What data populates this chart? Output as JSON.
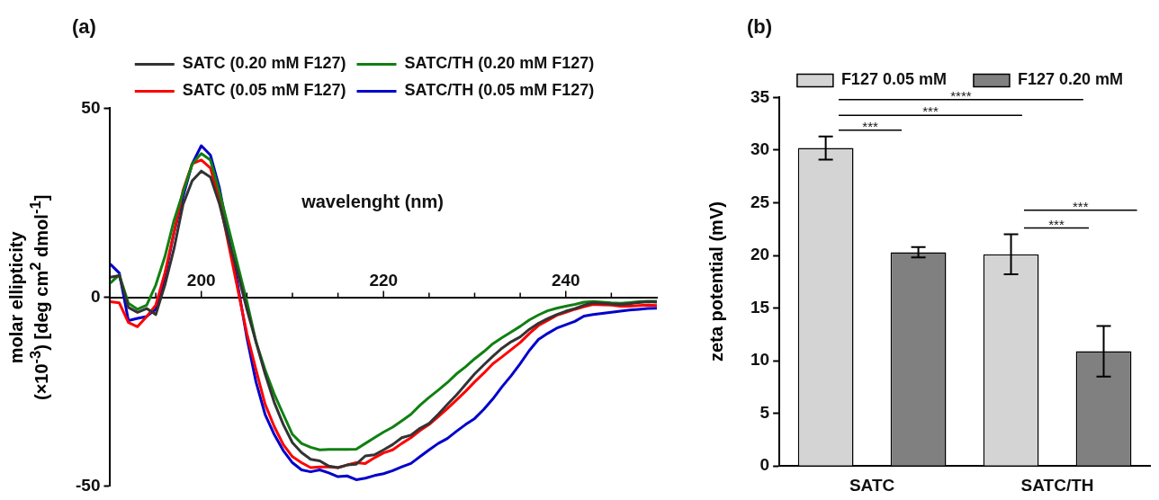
{
  "chart_data": [
    {
      "type": "line",
      "title": "(a)",
      "xlabel": "wavelenght (nm)",
      "ylabel": "molar ellipticity\n(×10$^{-3}$) [deg cm$^{2}$ dmol$^{-1}$]",
      "x": [
        190,
        191,
        192,
        193,
        194,
        195,
        196,
        197,
        198,
        199,
        200,
        201,
        202,
        203,
        204,
        205,
        206,
        207,
        208,
        209,
        210,
        211,
        212,
        213,
        214,
        215,
        216,
        217,
        218,
        219,
        220,
        221,
        222,
        223,
        224,
        225,
        226,
        227,
        228,
        229,
        230,
        231,
        232,
        233,
        234,
        235,
        236,
        237,
        238,
        239,
        240,
        241,
        242,
        243,
        244,
        245,
        246,
        247,
        248,
        249,
        250
      ],
      "series": [
        {
          "name": "SATC (0.20 mM F127)",
          "color": "#333333",
          "values": [
            5.3,
            5.7,
            -2.7,
            -4,
            -3,
            -4.6,
            3.2,
            12.8,
            24.6,
            30.8,
            33.4,
            31.8,
            24.6,
            15,
            6.4,
            -3.2,
            -11.8,
            -20.3,
            -27.8,
            -33.7,
            -38.5,
            -41.1,
            -42.9,
            -43.3,
            -44.7,
            -45.1,
            -44.4,
            -44.2,
            -42,
            -41.7,
            -40.4,
            -39,
            -37.2,
            -36.5,
            -34.7,
            -33.4,
            -31,
            -28.4,
            -25.9,
            -23.1,
            -20.3,
            -17.9,
            -15.6,
            -13.5,
            -11.8,
            -10.5,
            -8.5,
            -6.9,
            -5.7,
            -4.6,
            -3.7,
            -3,
            -2.1,
            -1.5,
            -1.6,
            -1.8,
            -1.9,
            -1.7,
            -1.4,
            -1.2,
            -1.3
          ]
        },
        {
          "name": "SATC/TH (0.20 mM F127)",
          "color": "#108010",
          "values": [
            3.7,
            5.9,
            -1.6,
            -3.2,
            -2.1,
            3.2,
            10.7,
            20.3,
            27.8,
            35.3,
            38,
            36.3,
            27.8,
            18.2,
            8.5,
            -1.1,
            -11.8,
            -19.2,
            -25.6,
            -31,
            -36.3,
            -38.7,
            -39.7,
            -40.4,
            -40.3,
            -40.3,
            -40.3,
            -40.2,
            -38.7,
            -37.2,
            -35.7,
            -34.4,
            -32.7,
            -31,
            -28.6,
            -26.5,
            -24.6,
            -22.6,
            -20.3,
            -18.4,
            -16.3,
            -14.4,
            -12.3,
            -10.7,
            -9.2,
            -7.7,
            -6,
            -4.7,
            -3.6,
            -2.9,
            -2.4,
            -1.9,
            -1.3,
            -1.1,
            -1.3,
            -1.5,
            -1.6,
            -1.4,
            -1.2,
            -1.1,
            -1.1
          ]
        },
        {
          "name": "SATC (0.05 mM F127)",
          "color": "#ff0000",
          "values": [
            -1.2,
            -1.5,
            -6.7,
            -7.8,
            -5.1,
            -2.1,
            6.4,
            17.1,
            28.3,
            35.3,
            36.3,
            34.2,
            25.6,
            13.9,
            2.1,
            -9.6,
            -19.2,
            -28.3,
            -34.2,
            -39,
            -42.2,
            -43.8,
            -45.1,
            -44.9,
            -44.9,
            -45.1,
            -44.4,
            -43.8,
            -44,
            -42.5,
            -41.2,
            -40.4,
            -38.7,
            -37.2,
            -35.3,
            -33.7,
            -31.6,
            -29.5,
            -27.2,
            -24.9,
            -22.4,
            -20.1,
            -17.6,
            -15.8,
            -13.9,
            -12,
            -9.6,
            -7.5,
            -6.2,
            -4.8,
            -4,
            -3.2,
            -2.5,
            -1.9,
            -2,
            -2.1,
            -2.4,
            -2.4,
            -2.2,
            -2.1,
            -2.2
          ]
        },
        {
          "name": "SATC/TH (0.05 mM F127)",
          "color": "#0000cc",
          "values": [
            8.8,
            6.4,
            -6.2,
            -5.6,
            -5.1,
            -3.2,
            5.3,
            17.1,
            26.7,
            35.3,
            40.1,
            37.6,
            28.8,
            16,
            3.2,
            -10.7,
            -22.4,
            -31,
            -36.3,
            -40.6,
            -43.8,
            -45.7,
            -46.2,
            -45.7,
            -46.5,
            -47.5,
            -47.3,
            -48.3,
            -47.9,
            -47.2,
            -46.7,
            -45.9,
            -44.9,
            -44,
            -42.2,
            -40.4,
            -38.7,
            -37.4,
            -35.5,
            -33.7,
            -32.1,
            -29.7,
            -26.9,
            -23.7,
            -20.8,
            -17.6,
            -14.1,
            -11.2,
            -9.6,
            -8.2,
            -7.3,
            -6.4,
            -5,
            -4.6,
            -4.3,
            -4,
            -3.7,
            -3.4,
            -3.2,
            -3,
            -2.9
          ]
        }
      ],
      "xlim": [
        190,
        250
      ],
      "xticks": [
        {
          "value": 195,
          "label": null
        },
        200,
        {
          "value": 205,
          "label": null
        },
        {
          "value": 210,
          "label": null
        },
        {
          "value": 215,
          "label": null
        },
        220,
        {
          "value": 225,
          "label": null
        },
        {
          "value": 230,
          "label": null
        },
        {
          "value": 235,
          "label": null
        },
        240,
        {
          "value": 245,
          "label": null
        }
      ],
      "ylim": [
        -50,
        50
      ],
      "yticks": [
        -50,
        0,
        50
      ],
      "grid": false,
      "legend": "top",
      "marker": "none",
      "line_style": "solid"
    },
    {
      "type": "bar",
      "title": "(b)",
      "ylabel": "zeta potential (mV)",
      "categories": [
        "SATC",
        "SATC/TH"
      ],
      "series": [
        {
          "name": "F127 0.05 mM",
          "color": "#d4d4d4",
          "values": [
            30.2,
            20.1
          ],
          "errors": [
            1.1,
            1.9
          ]
        },
        {
          "name": "F127 0.20 mM",
          "color": "#808080",
          "values": [
            20.3,
            10.9
          ],
          "errors": [
            0.5,
            2.4
          ]
        }
      ],
      "ylim": [
        0,
        35
      ],
      "yticks": [
        0,
        5,
        10,
        15,
        20,
        25,
        30,
        35
      ],
      "annotations": [
        "***",
        "***",
        "****",
        "***",
        "***"
      ],
      "grid": false,
      "legend": "top"
    }
  ]
}
